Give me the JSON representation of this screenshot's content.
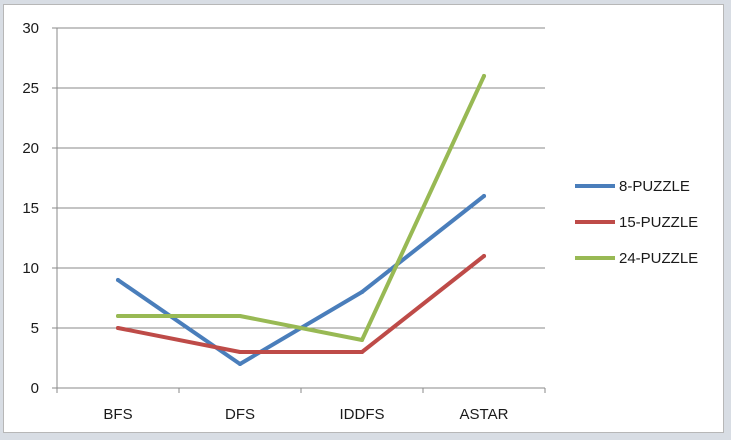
{
  "chart_data": {
    "type": "line",
    "categories": [
      "BFS",
      "DFS",
      "IDDFS",
      "ASTAR"
    ],
    "series": [
      {
        "name": "8-PUZZLE",
        "values": [
          9,
          2,
          8,
          16
        ],
        "color": "#4a7ebb"
      },
      {
        "name": "15-PUZZLE",
        "values": [
          5,
          3,
          3,
          11
        ],
        "color": "#be4b48"
      },
      {
        "name": "24-PUZZLE",
        "values": [
          6,
          6,
          4,
          26
        ],
        "color": "#98b954"
      }
    ],
    "ylim": [
      0,
      30
    ],
    "yticks": [
      0,
      5,
      10,
      15,
      20,
      25,
      30
    ],
    "grid": true,
    "legend": "right"
  }
}
